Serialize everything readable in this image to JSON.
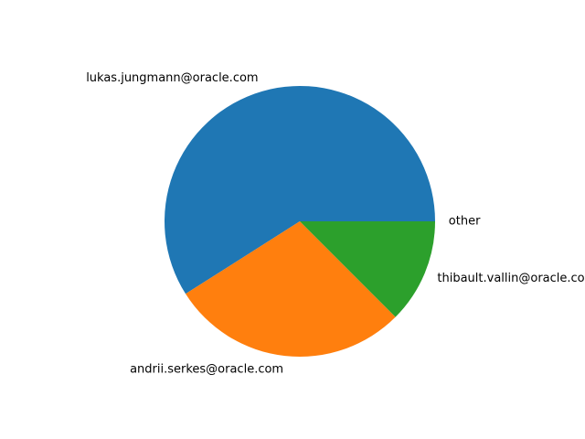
{
  "chart_data": {
    "type": "pie",
    "title": "",
    "start_angle_deg": 0,
    "direction": "counterclockwise",
    "slices": [
      {
        "label": "other",
        "value": 0.0
      },
      {
        "label": "lukas.jungmann@oracle.com",
        "value": 59
      },
      {
        "label": "andrii.serkes@oracle.com",
        "value": 28.5
      },
      {
        "label": "thibault.vallin@oracle.com",
        "value": 12.5
      }
    ],
    "colors": [
      "#d62728",
      "#1f77b4",
      "#ff7f0e",
      "#2ca02c"
    ]
  }
}
